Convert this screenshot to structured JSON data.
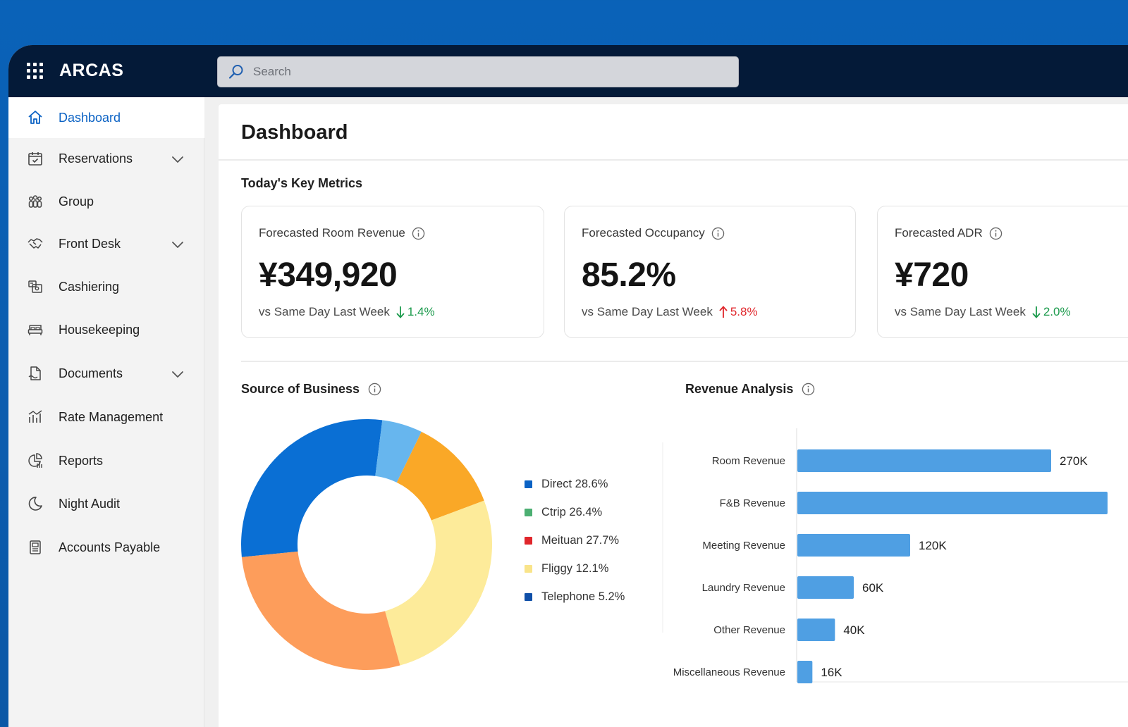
{
  "app": {
    "brand": "ARCAS"
  },
  "search": {
    "placeholder": "Search"
  },
  "sidebar": {
    "items": [
      {
        "label": "Dashboard",
        "icon": "home-icon",
        "active": true,
        "expandable": false
      },
      {
        "label": "Reservations",
        "icon": "calendar-check-icon",
        "active": false,
        "expandable": true
      },
      {
        "label": "Group",
        "icon": "group-icon",
        "active": false,
        "expandable": false
      },
      {
        "label": "Front Desk",
        "icon": "handshake-icon",
        "active": false,
        "expandable": true
      },
      {
        "label": "Cashiering",
        "icon": "cash-register-icon",
        "active": false,
        "expandable": false
      },
      {
        "label": "Housekeeping",
        "icon": "bed-icon",
        "active": false,
        "expandable": false
      },
      {
        "label": "Documents",
        "icon": "document-icon",
        "active": false,
        "expandable": true
      },
      {
        "label": "Rate Management",
        "icon": "rate-chart-icon",
        "active": false,
        "expandable": false
      },
      {
        "label": "Reports",
        "icon": "report-icon",
        "active": false,
        "expandable": false
      },
      {
        "label": "Night Audit",
        "icon": "moon-icon",
        "active": false,
        "expandable": false
      },
      {
        "label": "Accounts Payable",
        "icon": "ledger-icon",
        "active": false,
        "expandable": false
      }
    ]
  },
  "main": {
    "title": "Dashboard",
    "key_metrics_title": "Today's Key Metrics",
    "metrics": [
      {
        "title": "Forecasted Room Revenue",
        "value": "¥349,920",
        "compare_label": "vs Same Day Last Week",
        "change": "1.4%",
        "direction": "down"
      },
      {
        "title": "Forecasted Occupancy",
        "value": "85.2%",
        "compare_label": "vs Same Day Last Week",
        "change": "5.8%",
        "direction": "up"
      },
      {
        "title": "Forecasted ADR",
        "value": "¥720",
        "compare_label": "vs Same Day Last Week",
        "change": "2.0%",
        "direction": "down"
      }
    ],
    "source_title": "Source of Business",
    "revenue_title": "Revenue Analysis"
  },
  "colors": {
    "accent": "#0b62c4",
    "positive_down": "#1b9a4c",
    "negative_up": "#e0262b",
    "bar": "#4f9fe3"
  },
  "chart_data": [
    {
      "type": "pie",
      "title": "Source of Business",
      "legend": [
        {
          "label": "Direct 28.6%",
          "color": "#0b62c4"
        },
        {
          "label": "Ctrip 26.4%",
          "color": "#4caf72"
        },
        {
          "label": "Meituan 27.7%",
          "color": "#e0262b"
        },
        {
          "label": "Fliggy 12.1%",
          "color": "#f9e48a"
        },
        {
          "label": "Telephone 5.2%",
          "color": "#0f4fa8"
        }
      ],
      "slices": [
        {
          "value": 28.6,
          "color": "#0a6fd4"
        },
        {
          "value": 5.2,
          "color": "#67b6ee"
        },
        {
          "value": 12.1,
          "color": "#faa827"
        },
        {
          "value": 26.4,
          "color": "#fdeb9a"
        },
        {
          "value": 27.7,
          "color": "#fd9d5b"
        }
      ]
    },
    {
      "type": "bar",
      "orientation": "horizontal",
      "title": "Revenue Analysis",
      "categories": [
        "Room Revenue",
        "F&B Revenue",
        "Meeting Revenue",
        "Laundry Revenue",
        "Other Revenue",
        "Miscellaneous Revenue"
      ],
      "values": [
        270000,
        330000,
        120000,
        60000,
        40000,
        16000
      ],
      "labels": [
        "270K",
        "",
        "120K",
        "60K",
        "40K",
        "16K"
      ],
      "xlim": [
        0,
        330000
      ]
    }
  ]
}
